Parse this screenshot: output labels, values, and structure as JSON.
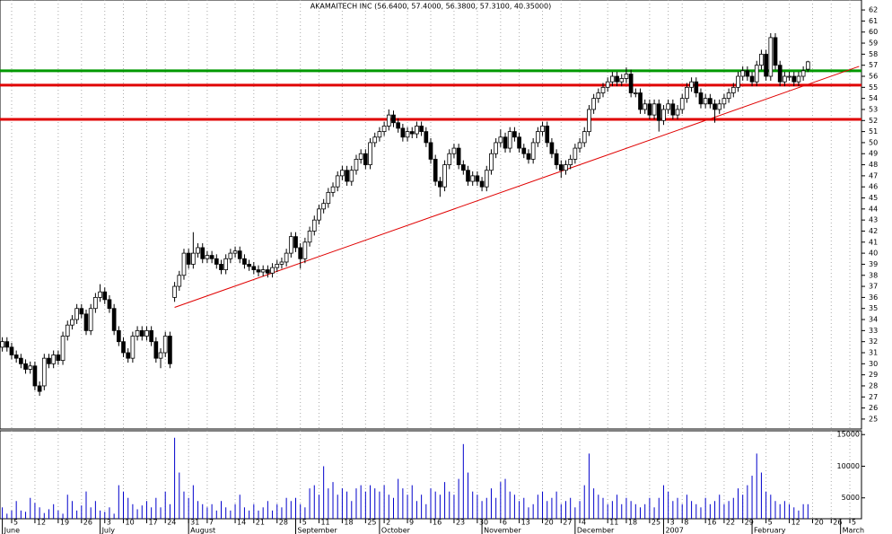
{
  "chart_data": {
    "type": "candlestick",
    "title": "AKAMAITECH INC (56.6400, 57.4000, 56.3800, 57.3100, 40.35000)",
    "xlim": [
      -0.5,
      184.5
    ],
    "ylim": [
      24.1,
      62.9
    ],
    "yticks": [
      25,
      26,
      27,
      28,
      29,
      30,
      31,
      32,
      33,
      34,
      35,
      36,
      37,
      38,
      39,
      40,
      41,
      42,
      43,
      44,
      45,
      46,
      47,
      48,
      49,
      50,
      51,
      52,
      53,
      54,
      55,
      56,
      57,
      58,
      59,
      60,
      61,
      62
    ],
    "xticks": [
      {
        "value": 2,
        "label": "5"
      },
      {
        "value": 7,
        "label": "12"
      },
      {
        "value": 12,
        "label": "19"
      },
      {
        "value": 17,
        "label": "26"
      },
      {
        "value": 22,
        "label": "3"
      },
      {
        "value": 26,
        "label": "10"
      },
      {
        "value": 31,
        "label": "17"
      },
      {
        "value": 35,
        "label": "24"
      },
      {
        "value": 40,
        "label": "31"
      },
      {
        "value": 44,
        "label": "7"
      },
      {
        "value": 50,
        "label": "14"
      },
      {
        "value": 54,
        "label": "21"
      },
      {
        "value": 59,
        "label": "28"
      },
      {
        "value": 64,
        "label": "5"
      },
      {
        "value": 68,
        "label": "11"
      },
      {
        "value": 73,
        "label": "18"
      },
      {
        "value": 78,
        "label": "25"
      },
      {
        "value": 82,
        "label": "2"
      },
      {
        "value": 87,
        "label": "9"
      },
      {
        "value": 92,
        "label": "16"
      },
      {
        "value": 97,
        "label": "23"
      },
      {
        "value": 102,
        "label": "30"
      },
      {
        "value": 107,
        "label": "6"
      },
      {
        "value": 111,
        "label": "13"
      },
      {
        "value": 116,
        "label": "20"
      },
      {
        "value": 120,
        "label": "27"
      },
      {
        "value": 124,
        "label": "4"
      },
      {
        "value": 130,
        "label": "11"
      },
      {
        "value": 134,
        "label": "18"
      },
      {
        "value": 139,
        "label": "25"
      },
      {
        "value": 143,
        "label": "3"
      },
      {
        "value": 146,
        "label": "8"
      },
      {
        "value": 151,
        "label": "16"
      },
      {
        "value": 155,
        "label": "22"
      },
      {
        "value": 159,
        "label": "29"
      },
      {
        "value": 164,
        "label": "5"
      },
      {
        "value": 169,
        "label": "12"
      },
      {
        "value": 174,
        "label": "20"
      },
      {
        "value": 178,
        "label": "26"
      },
      {
        "value": 182,
        "label": "5"
      }
    ],
    "months": [
      {
        "value": 0,
        "label": "June"
      },
      {
        "value": 21,
        "label": "July"
      },
      {
        "value": 40,
        "label": "August"
      },
      {
        "value": 63,
        "label": "September"
      },
      {
        "value": 81,
        "label": "October"
      },
      {
        "value": 103,
        "label": "November"
      },
      {
        "value": 123,
        "label": "December"
      },
      {
        "value": 142,
        "label": "2007"
      },
      {
        "value": 161,
        "label": "February"
      },
      {
        "value": 180,
        "label": "March"
      }
    ],
    "up_color": "#ffffff",
    "down_color": "#000000",
    "open": [
      31.5,
      32,
      31.5,
      30.8,
      30.5,
      30,
      29.5,
      29.8,
      28,
      28,
      30.5,
      30,
      30.8,
      30.3,
      32.5,
      33.5,
      34,
      35,
      34.5,
      33,
      35,
      36,
      36.5,
      35.8,
      35,
      33,
      32,
      31,
      30.5,
      32.5,
      33,
      32.5,
      33,
      32,
      30.5,
      31,
      32.5,
      36,
      37,
      38,
      40,
      39,
      40,
      40.5,
      39.5,
      39.8,
      39.5,
      39,
      38.5,
      39.5,
      40,
      40.2,
      39.5,
      39,
      38.8,
      38.5,
      38.3,
      38.5,
      38.2,
      38.7,
      39,
      39.2,
      40,
      41.5,
      40.5,
      39.5,
      41,
      42,
      43,
      44,
      44.5,
      45.5,
      46,
      47,
      47.5,
      46.5,
      47.5,
      48.5,
      49,
      48,
      50,
      50.5,
      51,
      51.5,
      52.5,
      51.8,
      51.3,
      50.5,
      51,
      50.8,
      51.5,
      51,
      50,
      48.5,
      46.5,
      46,
      48,
      49,
      49.5,
      48,
      47.5,
      46.5,
      47,
      46.5,
      46,
      47.5,
      49,
      50,
      50.5,
      49.5,
      51,
      50.5,
      49.5,
      49,
      48.5,
      50,
      51,
      51.5,
      50,
      49,
      48,
      47.5,
      48,
      48.5,
      49.5,
      50,
      51,
      53,
      54,
      54.5,
      55,
      55.5,
      56,
      55.5,
      55.8,
      56.2,
      54.5,
      54.5,
      53,
      53.5,
      52.5,
      53.5,
      52,
      53,
      53.5,
      52.5,
      53,
      54,
      55,
      55.5,
      54.5,
      53.5,
      54,
      53.5,
      53,
      53.5,
      54,
      54.5,
      55,
      56,
      56.5,
      56,
      55.5,
      57,
      58,
      56,
      59.5,
      57,
      55.5,
      56,
      56,
      55.5,
      56,
      56.64
    ],
    "high": [
      32.4,
      32.4,
      31.9,
      31.2,
      30.9,
      30.4,
      30.2,
      30.2,
      28.4,
      30.9,
      30.9,
      31.2,
      31.2,
      32.9,
      33.9,
      34.4,
      35.4,
      35.4,
      34.9,
      35.4,
      36.4,
      37.2,
      36.9,
      36.2,
      35.4,
      33.4,
      32.4,
      31.4,
      32.9,
      33.4,
      33.4,
      33.4,
      33.4,
      32.4,
      31.4,
      32.9,
      32.9,
      37.4,
      38.4,
      40.4,
      40.4,
      41.9,
      40.9,
      40.9,
      40.2,
      40.2,
      39.9,
      39.4,
      39.9,
      40.4,
      40.6,
      40.6,
      39.9,
      39.4,
      39.2,
      38.9,
      38.9,
      38.9,
      39.1,
      39.4,
      39.6,
      40.4,
      41.9,
      41.9,
      40.9,
      41.4,
      42.4,
      43.4,
      44.4,
      44.9,
      45.9,
      46.4,
      47.4,
      47.9,
      47.9,
      47.9,
      48.9,
      49.4,
      49.4,
      50.4,
      50.9,
      51.4,
      51.9,
      53,
      52.9,
      52.2,
      51.7,
      51.4,
      51.4,
      51.9,
      51.9,
      51.4,
      50.4,
      48.9,
      46.9,
      48.4,
      49.4,
      49.9,
      49.9,
      48.4,
      47.9,
      47.4,
      47.4,
      46.9,
      47.9,
      49.4,
      50.4,
      51.2,
      50.9,
      51.4,
      51.4,
      50.9,
      49.9,
      49.4,
      50.4,
      51.4,
      51.9,
      51.9,
      50.4,
      49.4,
      48.4,
      48.4,
      48.9,
      49.9,
      50.4,
      51.4,
      53.4,
      54.4,
      54.9,
      55.4,
      55.9,
      56.4,
      56.4,
      56.2,
      56.8,
      56.6,
      54.9,
      54.9,
      53.9,
      53.9,
      53.9,
      53.9,
      53.4,
      53.9,
      53.9,
      53.4,
      54.4,
      55.4,
      55.9,
      55.9,
      54.9,
      54.4,
      54.4,
      53.9,
      53.9,
      54.4,
      54.9,
      55.4,
      56.4,
      56.9,
      56.9,
      56.4,
      57.4,
      58.4,
      58.4,
      59.9,
      59.9,
      57.4,
      56.4,
      56.4,
      56.4,
      56.4,
      56.9,
      57.4
    ],
    "low": [
      31.1,
      31.1,
      30.4,
      30.1,
      29.6,
      29.1,
      29.1,
      27.6,
      27.1,
      27.6,
      29.6,
      29.6,
      29.9,
      29.9,
      32.1,
      33.1,
      33.6,
      34.1,
      32.6,
      32.6,
      34.6,
      35.6,
      35.4,
      34.6,
      32.6,
      31.6,
      30.6,
      30.1,
      30.1,
      32.1,
      32.1,
      32.1,
      31.6,
      30.1,
      29.6,
      30.6,
      29.6,
      35.6,
      36.6,
      37.6,
      38.6,
      38.6,
      39.6,
      39.1,
      39.1,
      39.1,
      38.6,
      38.1,
      38.1,
      39.1,
      39.6,
      39.1,
      38.6,
      38.4,
      38.1,
      37.9,
      37.9,
      37.8,
      37.8,
      38.3,
      38.6,
      38.8,
      39.6,
      40.1,
      38.6,
      39.1,
      40.6,
      41.6,
      42.6,
      43.6,
      44.1,
      45.1,
      45.6,
      46.6,
      46.1,
      46.1,
      47.1,
      48.1,
      47.6,
      47.6,
      49.6,
      50.1,
      50.6,
      51.1,
      51.4,
      50.9,
      50.1,
      50.1,
      50.4,
      50.4,
      50.6,
      49.6,
      48.1,
      46.1,
      45.1,
      45.6,
      47.6,
      48.6,
      47.6,
      47.1,
      46.1,
      46.1,
      46.1,
      45.6,
      45.6,
      47.1,
      48.6,
      49.6,
      49.1,
      49.1,
      50.1,
      49.1,
      48.6,
      48.1,
      48.1,
      49.6,
      50.6,
      49.6,
      48.6,
      47.6,
      46.8,
      47.1,
      47.6,
      48.1,
      49.1,
      49.6,
      50.6,
      52.6,
      53.6,
      54.1,
      54.6,
      55.1,
      55.1,
      55.1,
      55.4,
      54.1,
      54.1,
      52.6,
      52.6,
      52.1,
      52.1,
      51,
      51.6,
      52.6,
      52.1,
      52.1,
      52.6,
      53.6,
      54.6,
      54.1,
      53.1,
      53.1,
      53.1,
      51.8,
      52.6,
      53.1,
      53.6,
      54.1,
      54.6,
      55.6,
      55.6,
      55.1,
      55.1,
      56.6,
      55.6,
      55.6,
      56.6,
      55.1,
      55.1,
      55.6,
      55.1,
      55.1,
      55.6,
      56.38
    ],
    "close": [
      32,
      31.5,
      30.8,
      30.5,
      30,
      29.5,
      29.8,
      28,
      27.5,
      30.5,
      30,
      30.8,
      30.3,
      32.5,
      33.5,
      34,
      35,
      34.5,
      33,
      35,
      36,
      36.5,
      35.8,
      35,
      33,
      32,
      31,
      30.5,
      32.5,
      33,
      32.5,
      33,
      32,
      30.5,
      31,
      32.5,
      30,
      37,
      38,
      40,
      39,
      40,
      40.5,
      39.5,
      39.8,
      39.5,
      39,
      38.5,
      39.5,
      40,
      40.2,
      39.5,
      39,
      38.8,
      38.5,
      38.3,
      38.5,
      38.2,
      38.7,
      39,
      39.2,
      40,
      41.5,
      40.5,
      39.5,
      41,
      42,
      43,
      44,
      44.5,
      45.5,
      46,
      47,
      47.5,
      46.5,
      47.5,
      48.5,
      49,
      48,
      50,
      50.5,
      51,
      51.5,
      52.5,
      51.8,
      51.3,
      50.5,
      51,
      50.8,
      51.5,
      51,
      50,
      48.5,
      46.5,
      46,
      48,
      49,
      49.5,
      48,
      47.5,
      46.5,
      47,
      46.5,
      46,
      47.5,
      49,
      50,
      50.5,
      49.5,
      51,
      50.5,
      49.5,
      49,
      48.5,
      50,
      51,
      51.5,
      50,
      49,
      48,
      47.5,
      48,
      48.5,
      49.5,
      50,
      51,
      53,
      54,
      54.5,
      55,
      55.5,
      56,
      55.5,
      55.8,
      56.2,
      54.5,
      54.5,
      53,
      53.5,
      52.5,
      53.5,
      52,
      53,
      53.5,
      52.5,
      53,
      54,
      55,
      55.5,
      54.5,
      53.5,
      54,
      53.5,
      53,
      53.5,
      54,
      54.5,
      55,
      56,
      56.5,
      56,
      55.5,
      57,
      58,
      56,
      59.5,
      57,
      55.5,
      56,
      56,
      55.5,
      56,
      56.5,
      57.31
    ],
    "levels": [
      {
        "value": 56.5,
        "color": "#009900"
      },
      {
        "value": 55.2,
        "color": "#e00000"
      },
      {
        "value": 52.1,
        "color": "#e00000"
      }
    ],
    "trendline": {
      "x": [
        37,
        184
      ],
      "y": [
        35.1,
        56.9
      ],
      "color": "#e00000"
    },
    "volume": {
      "color": "#0000cc",
      "ylim": [
        1700,
        15600
      ],
      "yticks": [
        5000,
        10000,
        15000
      ],
      "values": [
        3500,
        2500,
        3000,
        4500,
        3000,
        2800,
        5000,
        4200,
        3500,
        2600,
        3200,
        4000,
        3000,
        2500,
        5500,
        4500,
        3000,
        3800,
        6000,
        3500,
        4500,
        3000,
        2800,
        3500,
        2500,
        7000,
        6000,
        5000,
        4000,
        3200,
        3800,
        4500,
        3500,
        5000,
        3500,
        6000,
        4000,
        14500,
        9000,
        6000,
        5000,
        7000,
        4500,
        4000,
        3500,
        4000,
        3000,
        4500,
        3500,
        3000,
        4000,
        5500,
        3500,
        3000,
        4000,
        3000,
        3500,
        4500,
        3000,
        4000,
        3500,
        5000,
        4500,
        5000,
        4000,
        3500,
        6500,
        7000,
        5500,
        10000,
        6500,
        7500,
        5500,
        6500,
        6000,
        4500,
        6500,
        7000,
        6000,
        7000,
        6500,
        6000,
        7000,
        5500,
        5000,
        8000,
        6500,
        5500,
        7000,
        4500,
        5500,
        4000,
        6500,
        6000,
        5500,
        7500,
        6000,
        5500,
        8000,
        13500,
        9000,
        6000,
        5500,
        4500,
        5000,
        6500,
        5000,
        7500,
        8000,
        6000,
        5500,
        4500,
        5000,
        3500,
        4000,
        5500,
        6000,
        4500,
        5000,
        6000,
        4000,
        4500,
        5000,
        3500,
        4500,
        7000,
        12000,
        6500,
        5500,
        5000,
        4000,
        4500,
        5500,
        4000,
        5000,
        4500,
        4000,
        3500,
        4000,
        5000,
        3500,
        5000,
        7000,
        6000,
        4500,
        5000,
        4000,
        5500,
        4500,
        4000,
        3500,
        5000,
        4000,
        4500,
        5500,
        4000,
        4500,
        5000,
        6500,
        5500,
        7000,
        8500,
        12000,
        9000,
        6000,
        5500,
        4500,
        4000,
        4500,
        4000,
        3500,
        3000,
        4000,
        4000
      ]
    }
  }
}
